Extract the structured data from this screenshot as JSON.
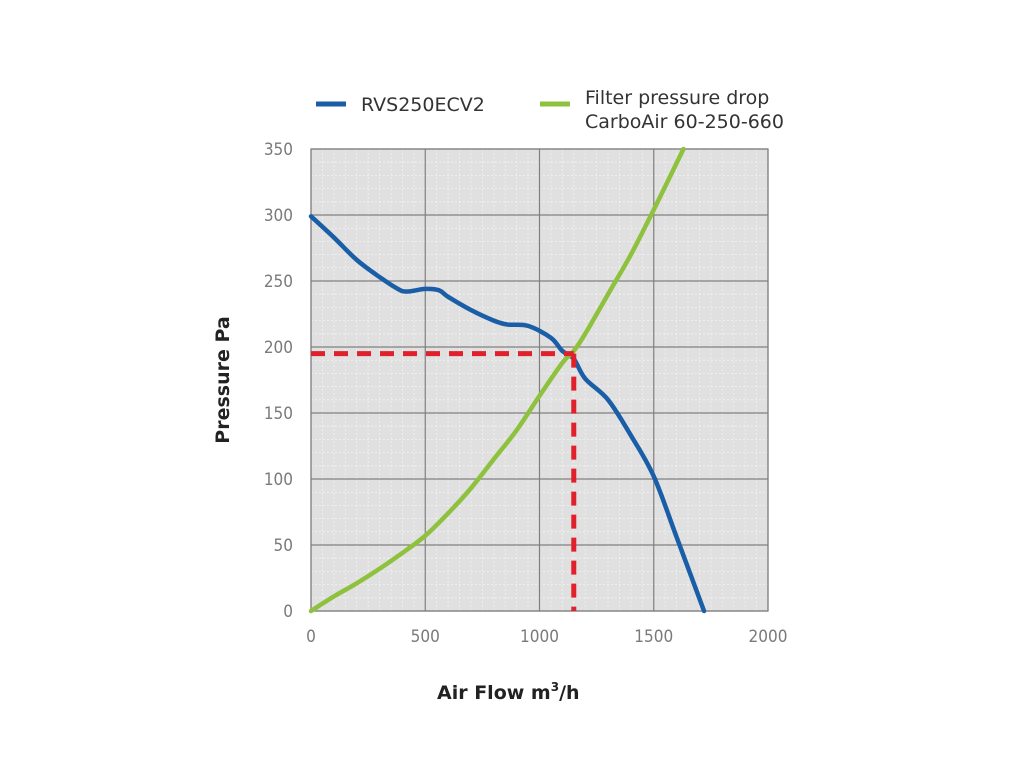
{
  "chart_data": {
    "type": "line",
    "title": "",
    "xlabel": "Air Flow m",
    "xlabel_sup": "3",
    "xlabel_suffix": "/h",
    "ylabel": "Pressure Pa",
    "xlim": [
      0,
      2000
    ],
    "ylim": [
      0,
      350
    ],
    "x_ticks": [
      "0",
      "500",
      "1000",
      "1500",
      "2000"
    ],
    "y_ticks": [
      "0",
      "50",
      "100",
      "150",
      "200",
      "250",
      "300",
      "350"
    ],
    "x_tick_values": [
      0,
      500,
      1000,
      1500,
      2000
    ],
    "y_tick_values": [
      0,
      50,
      100,
      150,
      200,
      250,
      300,
      350
    ],
    "grid": true,
    "legend_position": "top",
    "series": [
      {
        "name": "RVS250ECV2",
        "color": "#1a5ea8",
        "x": [
          0,
          100,
          200,
          300,
          380,
          420,
          500,
          560,
          600,
          700,
          800,
          860,
          950,
          1050,
          1100,
          1150,
          1200,
          1300,
          1400,
          1500,
          1600,
          1720
        ],
        "y": [
          299,
          283,
          266,
          253,
          244,
          242,
          244,
          243,
          238,
          228,
          220,
          217,
          216,
          207,
          197,
          191,
          176,
          160,
          133,
          102,
          56,
          0
        ]
      },
      {
        "name": "Filter pressure drop",
        "name_line2": "CarboAir 60-250-660",
        "color": "#8ec13d",
        "x": [
          0,
          100,
          200,
          300,
          400,
          500,
          600,
          700,
          800,
          900,
          1000,
          1100,
          1150,
          1200,
          1300,
          1400,
          1500,
          1630
        ],
        "y": [
          0,
          11,
          21,
          32,
          44,
          57,
          74,
          93,
          115,
          137,
          163,
          188,
          197,
          210,
          240,
          270,
          304,
          350
        ]
      }
    ],
    "annotations": [
      {
        "type": "operating-point-dashed",
        "color": "#e0202a",
        "x": 1150,
        "y": 195
      }
    ],
    "colors": {
      "plot_background": "#e0e0e0",
      "major_grid": "#7f7f7f",
      "minor_grid": "#f2f2f2",
      "tick_label": "#7a7a7a"
    }
  }
}
